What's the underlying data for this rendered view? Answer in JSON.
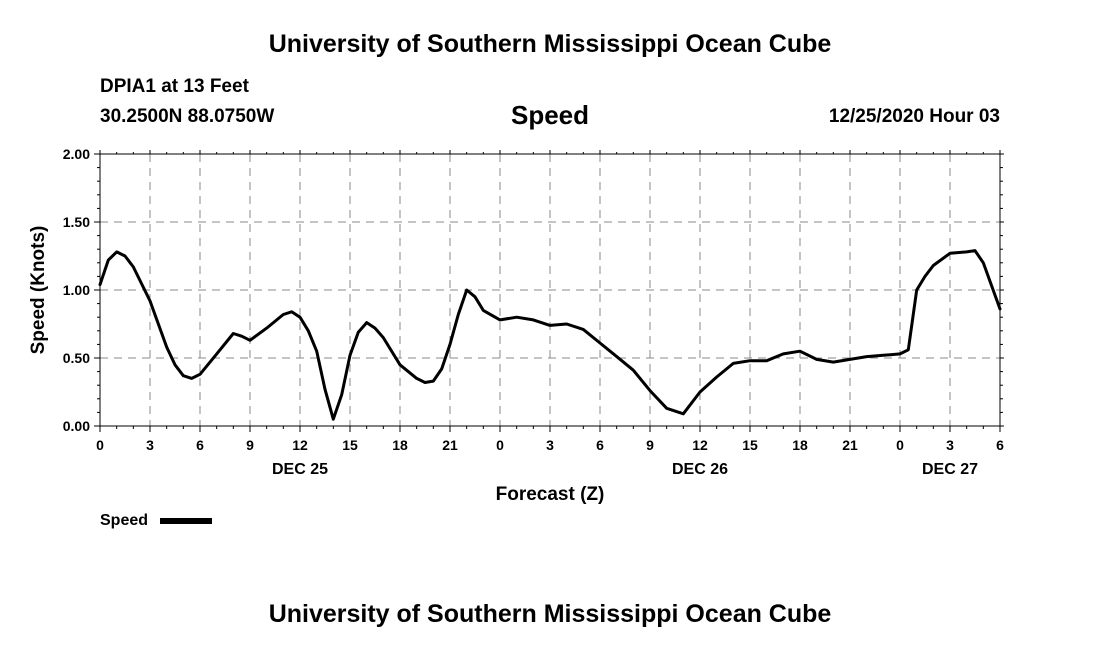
{
  "header": {
    "title": "University of Southern Mississippi Ocean Cube",
    "station": "DPIA1 at 13 Feet",
    "coordinates": "30.2500N 88.0750W",
    "variable": "Speed",
    "datetime": "12/25/2020 Hour 03"
  },
  "footer": {
    "title": "University of Southern Mississippi Ocean Cube"
  },
  "chart_data": {
    "type": "line",
    "title": "Speed",
    "xlabel": "Forecast (Z)",
    "ylabel": "Speed (Knots)",
    "ylim": [
      0,
      2
    ],
    "yticks": [
      "0.00",
      "0.50",
      "1.00",
      "1.50",
      "2.00"
    ],
    "xlim_hours": [
      0,
      54
    ],
    "xtick_labels": [
      "0",
      "3",
      "6",
      "9",
      "12",
      "15",
      "18",
      "21",
      "0",
      "3",
      "6",
      "9",
      "12",
      "15",
      "18",
      "21",
      "0",
      "3",
      "6"
    ],
    "day_labels": [
      "DEC 25",
      "DEC 26",
      "DEC 27"
    ],
    "grid": true,
    "legend_position": "bottom-left",
    "series": [
      {
        "name": "Speed",
        "color": "#000000",
        "x": [
          0,
          0.5,
          1,
          1.5,
          2,
          3,
          4,
          4.5,
          5,
          5.5,
          6,
          7,
          8,
          8.5,
          9,
          10,
          11,
          11.5,
          12,
          12.5,
          13,
          13.5,
          14,
          14.5,
          15,
          15.5,
          16,
          16.5,
          17,
          18,
          19,
          19.5,
          20,
          20.5,
          21,
          21.5,
          22,
          22.5,
          23,
          24,
          25,
          26,
          27,
          28,
          29,
          30,
          31,
          32,
          33,
          34,
          35,
          36,
          37,
          38,
          39,
          40,
          41,
          42,
          43,
          44,
          45,
          46,
          47,
          48,
          48.5,
          49,
          49.5,
          50,
          51,
          52,
          52.5,
          53,
          54
        ],
        "y": [
          1.04,
          1.22,
          1.28,
          1.25,
          1.17,
          0.92,
          0.58,
          0.45,
          0.37,
          0.35,
          0.38,
          0.53,
          0.68,
          0.66,
          0.63,
          0.72,
          0.82,
          0.84,
          0.8,
          0.7,
          0.55,
          0.27,
          0.05,
          0.23,
          0.52,
          0.69,
          0.76,
          0.72,
          0.65,
          0.45,
          0.35,
          0.32,
          0.33,
          0.42,
          0.6,
          0.82,
          1.0,
          0.95,
          0.85,
          0.78,
          0.8,
          0.78,
          0.74,
          0.75,
          0.71,
          0.61,
          0.51,
          0.41,
          0.26,
          0.13,
          0.09,
          0.25,
          0.36,
          0.46,
          0.48,
          0.48,
          0.53,
          0.55,
          0.49,
          0.47,
          0.49,
          0.51,
          0.52,
          0.53,
          0.56,
          1.0,
          1.1,
          1.18,
          1.27,
          1.28,
          1.29,
          1.2,
          0.86
        ]
      }
    ]
  }
}
